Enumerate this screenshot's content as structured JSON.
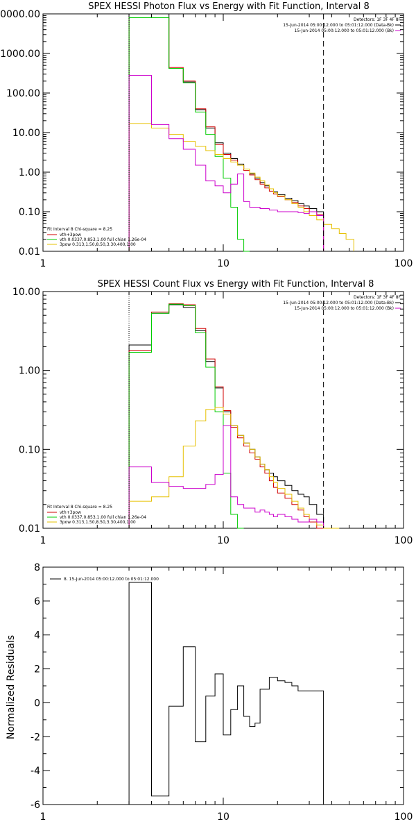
{
  "chart_data": [
    {
      "type": "line",
      "title": "SPEX HESSI Photon Flux vs Energy with Fit Function, Interval 8",
      "xlabel": "",
      "ylabel": "",
      "xscale": "log",
      "yscale": "log",
      "xlim": [
        1,
        100
      ],
      "ylim": [
        0.01,
        10000
      ],
      "x_tick_labels": [
        "1",
        "10",
        "100"
      ],
      "y_tick_labels": [
        "0.01",
        "0.10",
        "1.00",
        "10.00",
        "100.00",
        "1000.00",
        "10000.00"
      ],
      "header_lines": [
        "Detectors: 1F 3F 4F 8F",
        "15-Jun-2014 05:00:12.000 to 05:01:12.000 (Data-Bk)",
        "15-Jun-2014 05:00:12.000 to 05:01:12.000 (Bk)"
      ],
      "legend_title": "Fit Interval 8   Chi-square = 8.25",
      "legend": [
        {
          "label": "vth+3pow",
          "color": "#d00000"
        },
        {
          "label": "vth 0.0337,0.853,1.00  full chian 1.26e-04",
          "color": "#00cc00"
        },
        {
          "label": "3pow 0.313,1.50,8.50,3.30,400,1.00",
          "color": "#e6c000"
        }
      ],
      "edges": [
        3,
        4,
        5,
        6,
        7,
        8,
        9,
        10,
        11,
        12,
        13,
        14,
        15,
        16,
        17,
        18,
        19,
        20,
        22,
        24,
        26,
        28,
        30,
        33,
        36,
        40,
        44,
        48,
        53
      ],
      "series": [
        {
          "name": "Data-Bk",
          "color": "#000000",
          "values": [
            8000,
            8000,
            420,
            190,
            38,
            13,
            5.5,
            3.0,
            2.2,
            1.6,
            1.2,
            0.9,
            0.7,
            0.55,
            0.45,
            0.38,
            0.32,
            0.27,
            0.22,
            0.19,
            0.16,
            0.14,
            0.12,
            0.1
          ]
        },
        {
          "name": "vth+3pow",
          "color": "#d00000",
          "values": [
            8000,
            8000,
            440,
            200,
            40,
            14,
            5.0,
            2.8,
            2.0,
            1.5,
            1.1,
            0.85,
            0.65,
            0.5,
            0.4,
            0.33,
            0.28,
            0.24,
            0.2,
            0.17,
            0.14,
            0.12,
            0.1,
            0.085
          ]
        },
        {
          "name": "vth",
          "color": "#00cc00",
          "values": [
            8000,
            8000,
            420,
            180,
            33,
            9,
            2.5,
            0.7,
            0.13,
            0.02,
            0.004
          ]
        },
        {
          "name": "3pow",
          "color": "#e6c000",
          "values": [
            17,
            13,
            9,
            6,
            4.5,
            3.5,
            2.8,
            2.2,
            1.8,
            1.5,
            1.2,
            0.95,
            0.75,
            0.6,
            0.48,
            0.38,
            0.3,
            0.25,
            0.2,
            0.16,
            0.13,
            0.1,
            0.08,
            0.062,
            0.048,
            0.037,
            0.028,
            0.02
          ]
        },
        {
          "name": "Bk",
          "color": "#cc00cc",
          "values": [
            280,
            16,
            7,
            3.8,
            1.5,
            0.6,
            0.45,
            0.3,
            0.5,
            0.9,
            0.18,
            0.13,
            0.13,
            0.12,
            0.12,
            0.11,
            0.11,
            0.1,
            0.1,
            0.1,
            0.095,
            0.09,
            0.1,
            0.08
          ]
        }
      ],
      "lower_dotted": [
        3
      ],
      "upper_dashed": [
        36
      ]
    },
    {
      "type": "line",
      "title": "SPEX HESSI Count Flux vs Energy with Fit Function, Interval 8",
      "xlabel": "",
      "ylabel": "",
      "xscale": "log",
      "yscale": "log",
      "xlim": [
        1,
        100
      ],
      "ylim": [
        0.01,
        10
      ],
      "x_tick_labels": [
        "1",
        "10",
        "100"
      ],
      "y_tick_labels": [
        "0.01",
        "0.10",
        "1.00",
        "10.00"
      ],
      "header_lines": [
        "Detectors: 1F 3F 4F 8F",
        "15-Jun-2014 05:00:12.000 to 05:01:12.000 (Data-Bk)",
        "15-Jun-2014 05:00:12.000 to 05:01:12.000 (Bk)"
      ],
      "legend_title": "Fit Interval 8   Chi-square = 8.25",
      "legend": [
        {
          "label": "vth+3pow",
          "color": "#d00000"
        },
        {
          "label": "vth 0.0337,0.853,1.00  full chian 1.26e-04",
          "color": "#00cc00"
        },
        {
          "label": "3pow 0.313,1.50,8.50,3.30,400,1.00",
          "color": "#e6c000"
        }
      ],
      "edges": [
        3,
        4,
        5,
        6,
        7,
        8,
        9,
        10,
        11,
        12,
        13,
        14,
        15,
        16,
        17,
        18,
        19,
        20,
        22,
        24,
        26,
        28,
        30,
        33,
        36,
        40,
        44,
        48,
        53
      ],
      "series": [
        {
          "name": "Data-Bk",
          "color": "#000000",
          "values": [
            2.1,
            5.3,
            6.8,
            6.3,
            3.2,
            1.3,
            0.6,
            0.3,
            0.2,
            0.15,
            0.12,
            0.1,
            0.08,
            0.065,
            0.055,
            0.05,
            0.045,
            0.04,
            0.035,
            0.03,
            0.027,
            0.025,
            0.02,
            0.015
          ]
        },
        {
          "name": "vth+3pow",
          "color": "#d00000",
          "values": [
            1.8,
            5.5,
            7.0,
            6.8,
            3.4,
            1.4,
            0.62,
            0.31,
            0.19,
            0.14,
            0.11,
            0.09,
            0.075,
            0.06,
            0.05,
            0.04,
            0.033,
            0.028,
            0.024,
            0.02,
            0.017,
            0.014,
            0.012,
            0.01
          ]
        },
        {
          "name": "vth",
          "color": "#00cc00",
          "values": [
            1.7,
            5.3,
            6.9,
            6.6,
            3.0,
            1.1,
            0.3,
            0.05,
            0.015,
            0.008
          ]
        },
        {
          "name": "3pow",
          "color": "#e6c000",
          "values": [
            0.022,
            0.025,
            0.045,
            0.11,
            0.23,
            0.32,
            0.34,
            0.28,
            0.2,
            0.15,
            0.12,
            0.1,
            0.08,
            0.065,
            0.055,
            0.045,
            0.038,
            0.032,
            0.027,
            0.022,
            0.018,
            0.015,
            0.013,
            0.011,
            0.009,
            0.007
          ]
        },
        {
          "name": "Bk",
          "color": "#cc00cc",
          "values": [
            0.06,
            0.038,
            0.034,
            0.032,
            0.032,
            0.036,
            0.048,
            0.2,
            0.025,
            0.02,
            0.018,
            0.018,
            0.016,
            0.017,
            0.016,
            0.015,
            0.014,
            0.015,
            0.014,
            0.013,
            0.012,
            0.012,
            0.013,
            0.012
          ]
        }
      ],
      "lower_dotted": [
        3
      ],
      "upper_dashed": [
        36
      ]
    },
    {
      "type": "line",
      "title": "",
      "xlabel": "",
      "ylabel": "Normalized Residuals",
      "xscale": "log",
      "yscale": "linear",
      "xlim": [
        1,
        100
      ],
      "ylim": [
        -6,
        8
      ],
      "x_tick_labels": [
        "1",
        "10",
        "100"
      ],
      "y_tick_labels": [
        "-6",
        "-4",
        "-2",
        "0",
        "2",
        "4",
        "6",
        "8"
      ],
      "legend": [
        {
          "label": "8. 15-Jun-2014 05:00:12.000 to 05:01:12.000",
          "color": "#000000"
        }
      ],
      "edges": [
        3,
        4,
        5,
        6,
        7,
        8,
        9,
        10,
        11,
        12,
        13,
        14,
        15,
        16,
        17,
        18,
        20,
        22,
        24,
        26,
        28,
        30,
        33,
        36
      ],
      "series": [
        {
          "name": "",
          "color": "#000000",
          "values": [
            7.1,
            -5.5,
            -0.2,
            3.3,
            -2.3,
            0.4,
            1.7,
            -1.9,
            -0.4,
            1.0,
            -0.8,
            -1.4,
            -1.2,
            0.8,
            0.8,
            1.5,
            1.3,
            1.2,
            1.0,
            0.7,
            0.7,
            0.7,
            0.7
          ]
        }
      ]
    }
  ]
}
